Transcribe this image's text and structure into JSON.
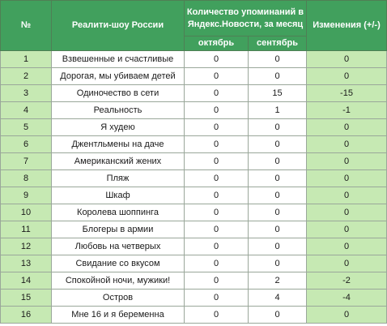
{
  "header": {
    "num": "№",
    "show": "Реалити-шоу России",
    "mentions": "Количество упоминаний в Яндекс.Новости, за месяц",
    "change": "Изменения (+/-)",
    "october": "октябрь",
    "september": "сентябрь"
  },
  "rows": [
    {
      "num": "1",
      "name": "Взвешенные и счастливые",
      "oct": "0",
      "sep": "0",
      "change": "0"
    },
    {
      "num": "2",
      "name": "Дорогая, мы убиваем детей",
      "oct": "0",
      "sep": "0",
      "change": "0"
    },
    {
      "num": "3",
      "name": "Одиночество в сети",
      "oct": "0",
      "sep": "15",
      "change": "-15"
    },
    {
      "num": "4",
      "name": "Реальность",
      "oct": "0",
      "sep": "1",
      "change": "-1"
    },
    {
      "num": "5",
      "name": "Я худею",
      "oct": "0",
      "sep": "0",
      "change": "0"
    },
    {
      "num": "6",
      "name": "Джентльмены на даче",
      "oct": "0",
      "sep": "0",
      "change": "0"
    },
    {
      "num": "7",
      "name": "Американский жених",
      "oct": "0",
      "sep": "0",
      "change": "0"
    },
    {
      "num": "8",
      "name": "Пляж",
      "oct": "0",
      "sep": "0",
      "change": "0"
    },
    {
      "num": "9",
      "name": "Шкаф",
      "oct": "0",
      "sep": "0",
      "change": "0"
    },
    {
      "num": "10",
      "name": "Королева шоппинга",
      "oct": "0",
      "sep": "0",
      "change": "0"
    },
    {
      "num": "11",
      "name": "Блогеры в армии",
      "oct": "0",
      "sep": "0",
      "change": "0"
    },
    {
      "num": "12",
      "name": "Любовь на четверых",
      "oct": "0",
      "sep": "0",
      "change": "0"
    },
    {
      "num": "13",
      "name": "Свидание со вкусом",
      "oct": "0",
      "sep": "0",
      "change": "0"
    },
    {
      "num": "14",
      "name": "Спокойной ночи, мужики!",
      "oct": "0",
      "sep": "2",
      "change": "-2"
    },
    {
      "num": "15",
      "name": "Остров",
      "oct": "0",
      "sep": "4",
      "change": "-4"
    },
    {
      "num": "16",
      "name": "Мне 16 и я беременна",
      "oct": "0",
      "sep": "0",
      "change": "0"
    }
  ],
  "colors": {
    "header_bg": "#41a05d",
    "header_text": "#ffffff",
    "light_green": "#c6e9b3"
  }
}
